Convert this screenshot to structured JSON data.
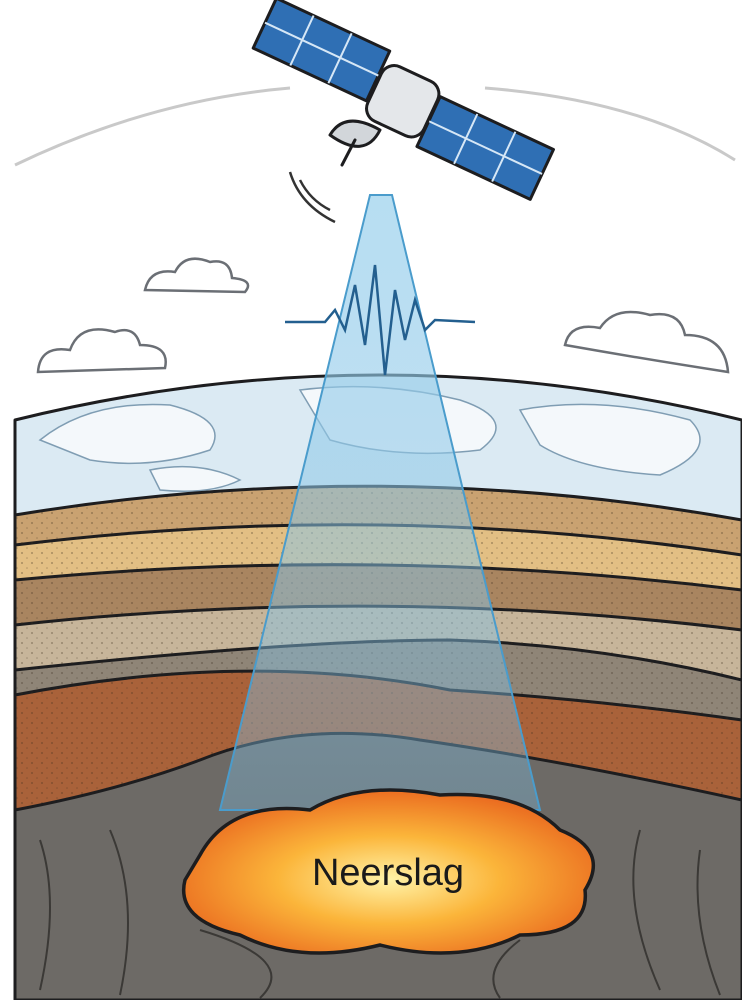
{
  "label": "Neerslag"
}
